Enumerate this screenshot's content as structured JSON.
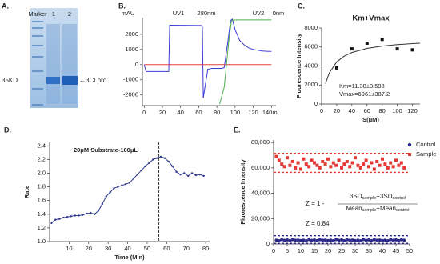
{
  "chart_data": [
    {
      "type": "gel",
      "label": "A.",
      "lanes": [
        "Marker",
        "1",
        "2"
      ],
      "annotations": [
        "35KD",
        "←3CLpro"
      ]
    },
    {
      "type": "line",
      "label": "B.",
      "annotations": [
        "mAU",
        "UV1",
        "280nm",
        "UV2",
        "0nm"
      ],
      "xlim": [
        -2,
        145
      ],
      "ylim": [
        -2700,
        3100
      ],
      "xticks": [
        0,
        20,
        40,
        60,
        80,
        100,
        120,
        {
          "value": 140,
          "label": "140mL"
        }
      ],
      "yticks": [
        -2000,
        -1000,
        0,
        1000,
        2000
      ],
      "series": [
        {
          "color": "#3b3bd6",
          "x": [
            0,
            2,
            25,
            27,
            28,
            63,
            64,
            65,
            66,
            70,
            75,
            85,
            88,
            92,
            95,
            97,
            100,
            105,
            110,
            115,
            120,
            125,
            130,
            135,
            140
          ],
          "values": [
            0,
            -450,
            -450,
            -450,
            2600,
            2580,
            2500,
            -2200,
            -1800,
            -300,
            -250,
            -250,
            -200,
            1500,
            2900,
            3000,
            2300,
            1600,
            1300,
            1100,
            1000,
            950,
            900,
            880,
            870
          ]
        },
        {
          "color": "#e04040",
          "x": [
            0,
            140
          ],
          "values": [
            0,
            0
          ]
        },
        {
          "color": "#4caf50",
          "x": [
            83,
            88,
            93,
            96,
            100,
            140
          ],
          "values": [
            -2600,
            -1500,
            1500,
            2900,
            2950,
            2950
          ]
        }
      ]
    },
    {
      "type": "scatter",
      "label": "C.",
      "title": "Km+Vmax",
      "xlabel": "S(μM)",
      "ylabel": "Fluorescence Intensity",
      "annotations": [
        "Km=11.38±3.598",
        "Vmax=6961±387.2"
      ],
      "xlim": [
        0,
        130
      ],
      "ylim": [
        0,
        8000
      ],
      "xticks": [
        0,
        20,
        40,
        60,
        80,
        100,
        120
      ],
      "yticks": [
        0,
        2000,
        4000,
        6000,
        8000
      ],
      "series": [
        {
          "color": "#111111",
          "mode": "markers",
          "marker": "square",
          "x": [
            20,
            40,
            60,
            80,
            100,
            120
          ],
          "values": [
            3800,
            5800,
            6400,
            6800,
            5800,
            5700
          ]
        },
        {
          "color": "#333333",
          "mode": "line",
          "x": [
            5,
            10,
            20,
            30,
            40,
            60,
            80,
            100,
            120,
            130
          ],
          "values": [
            2125,
            3255,
            4437,
            5047,
            5419,
            5851,
            6094,
            6250,
            6358,
            6401
          ]
        }
      ]
    },
    {
      "type": "line",
      "label": "D.",
      "title": "20μM Substrate-100μL",
      "xlabel": "Time (Min)",
      "ylabel": "Rate",
      "xlim": [
        0,
        82
      ],
      "ylim": [
        1.0,
        2.45
      ],
      "xticks": [
        10,
        20,
        30,
        40,
        50,
        60,
        70,
        80
      ],
      "yticks": [
        {
          "value": 1.0,
          "label": "1.0"
        },
        1.2,
        1.4,
        1.6,
        1.8,
        {
          "value": 2.0,
          "label": "2.0"
        },
        2.2,
        2.4
      ],
      "vline": 56,
      "series": [
        {
          "color": "#2e3a8c",
          "markers": true,
          "x": [
            1,
            3,
            5,
            7,
            9,
            11,
            13,
            15,
            17,
            19,
            21,
            23,
            25,
            27,
            29,
            31,
            33,
            35,
            37,
            39,
            41,
            43,
            45,
            47,
            49,
            51,
            53,
            55,
            57,
            59,
            61,
            63,
            65,
            67,
            69,
            71,
            73,
            75,
            77,
            79
          ],
          "values": [
            1.27,
            1.32,
            1.33,
            1.35,
            1.36,
            1.37,
            1.38,
            1.38,
            1.39,
            1.41,
            1.42,
            1.4,
            1.45,
            1.55,
            1.66,
            1.72,
            1.78,
            1.8,
            1.82,
            1.84,
            1.86,
            1.92,
            1.98,
            2.04,
            2.1,
            2.15,
            2.2,
            2.22,
            2.24,
            2.22,
            2.17,
            2.1,
            2.02,
            1.98,
            2.0,
            1.96,
            2.0,
            1.97,
            1.98,
            1.96
          ]
        }
      ]
    },
    {
      "type": "scatter",
      "label": "E.",
      "ylabel": "Fluorescence Intensity",
      "xlim": [
        0,
        50
      ],
      "ylim": [
        0,
        82000
      ],
      "xticks": [
        0,
        5,
        10,
        15,
        20,
        25,
        30,
        35,
        40,
        45,
        50
      ],
      "yticks": [
        0,
        {
          "value": 20000,
          "label": "20,000"
        },
        {
          "value": 40000,
          "label": "40,000"
        },
        {
          "value": 60000,
          "label": "60,000"
        },
        {
          "value": 80000,
          "label": "80,000"
        }
      ],
      "legend": "top-right",
      "hlines": [
        {
          "value": 71500,
          "color": "#e53935"
        },
        {
          "value": 56500,
          "color": "#e53935"
        },
        {
          "value": 6500,
          "color": "#2b2b8c"
        },
        {
          "value": 500,
          "color": "#2b2b8c"
        }
      ],
      "formula": {
        "lhs": "Z = 1 -",
        "numerator": [
          "3SD",
          "sample",
          "+3SD",
          "control"
        ],
        "denominator": [
          "Mean",
          "sample",
          "+Mean",
          "control"
        ],
        "result": "Z = 0.84"
      },
      "x": [
        1,
        2,
        3,
        4,
        5,
        6,
        7,
        8,
        9,
        10,
        11,
        12,
        13,
        14,
        15,
        16,
        17,
        18,
        19,
        20,
        21,
        22,
        23,
        24,
        25,
        26,
        27,
        28,
        29,
        30,
        31,
        32,
        33,
        34,
        35,
        36,
        37,
        38,
        39,
        40,
        41,
        42,
        43,
        44,
        45,
        46,
        47,
        48
      ],
      "series": [
        {
          "name": "Control",
          "color": "#2b2b8c",
          "mode": "markers",
          "marker": "circle",
          "values": [
            3000,
            2500,
            3500,
            2800,
            3200,
            2600,
            3400,
            2900,
            3100,
            2700,
            3000,
            2500,
            3500,
            2800,
            3200,
            2600,
            3400,
            2900,
            3100,
            2700,
            3000,
            2500,
            3500,
            2800,
            3200,
            2600,
            3400,
            2900,
            3100,
            2700,
            3000,
            2500,
            3500,
            2800,
            3200,
            2600,
            3400,
            2900,
            3100,
            2700,
            3000,
            2500,
            3500,
            2800,
            3200,
            2600,
            3400,
            2900
          ]
        },
        {
          "name": "Sample",
          "color": "#e53935",
          "mode": "markers",
          "marker": "square",
          "values": [
            69000,
            66000,
            63000,
            61000,
            68000,
            62000,
            65000,
            60000,
            64000,
            59000,
            67000,
            63000,
            61000,
            66000,
            64000,
            62000,
            60000,
            65000,
            63000,
            67000,
            61000,
            64000,
            62000,
            66000,
            60000,
            63000,
            65000,
            61000,
            64000,
            68000,
            62000,
            60000,
            63000,
            66000,
            61000,
            64000,
            59000,
            65000,
            62000,
            67000,
            63000,
            60000,
            64000,
            61000,
            66000,
            62000,
            64000,
            60000
          ]
        }
      ]
    }
  ]
}
